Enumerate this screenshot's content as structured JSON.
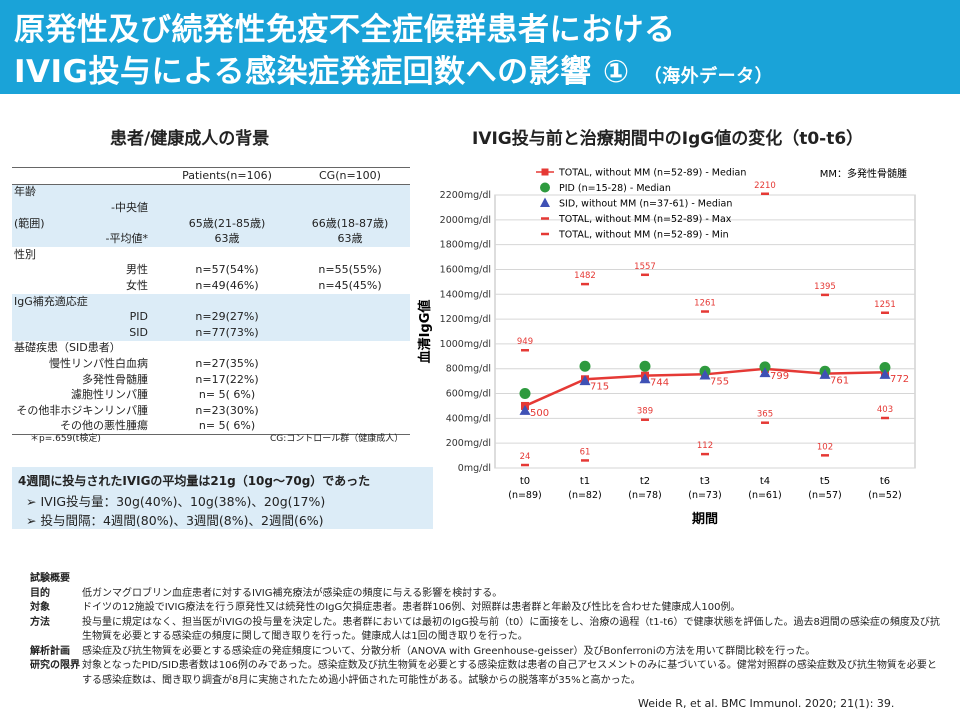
{
  "header": {
    "title_line1": "原発性及び続発性免疫不全症候群患者における",
    "title_line2": "IVIG投与による感染症発症回数への影響 ①",
    "title_tag": "（海外データ）"
  },
  "left_heading": "患者/健康成人の背景",
  "right_heading": "IVIG投与前と治療期間中のIgG値の変化（t0-t6）",
  "background_table": {
    "col_patients": "Patients(n=106)",
    "col_cg": "CG(n=100)",
    "age_label": "年齢",
    "range_label": "(範囲)",
    "median_label": "-中央値",
    "median_patients": "65歳(21-85歳)",
    "median_cg": "66歳(18-87歳)",
    "mean_label": "-平均値*",
    "mean_patients": "63歳",
    "mean_cg": "63歳",
    "sex_label": "性別",
    "male_label": "男性",
    "male_patients": "n=57(54%)",
    "male_cg": "n=55(55%)",
    "female_label": "女性",
    "female_patients": "n=49(46%)",
    "female_cg": "n=45(45%)",
    "igg_label": "IgG補充適応症",
    "pid_label": "PID",
    "pid_patients": "n=29(27%)",
    "sid_label": "SID",
    "sid_patients": "n=77(73%)",
    "disease_label": "基礎疾患（SID患者）",
    "d1_label": "慢性リンパ性白血病",
    "d1_val": "n=27(35%)",
    "d2_label": "多発性骨髄腫",
    "d2_val": "n=17(22%)",
    "d3_label": "濾胞性リンパ腫",
    "d3_val": "n=  5(  6%)",
    "d4_label": "その他非ホジキンリンパ腫",
    "d4_val": "n=23(30%)",
    "d5_label": "その他の悪性腫瘍",
    "d5_val": "n=  5(  6%)",
    "note_p": "＊p=.659(t検定)",
    "note_cg": "CG:コントロール群（健康成人）"
  },
  "dose_box": {
    "line1": "4週間に投与されたIVIGの平均量は21g（10g～70g）であった",
    "line2": "IVIG投与量：30g(40%)、10g(38%)、20g(17%)",
    "line3": "投与間隔：4週間(80%)、3週間(8%)、2週間(6%)",
    "bullet": "➢"
  },
  "summary": {
    "heading": "試験概要",
    "rows": [
      {
        "label": "目的",
        "text": "低ガンマグロブリン血症患者に対するIVIG補充療法が感染症の頻度に与える影響を検討する。"
      },
      {
        "label": "対象",
        "text": "ドイツの12施設でIVIG療法を行う原発性又は続発性のIgG欠損症患者。患者群106例、対照群は患者群と年齢及び性比を合わせた健康成人100例。"
      },
      {
        "label": "方法",
        "text": "投与量に規定はなく、担当医がIVIGの投与量を決定した。患者群においては最初のIgG投与前（t0）に面接をし、治療の過程（t1-t6）で健康状態を評価した。過去8週間の感染症の頻度及び抗生物質を必要とする感染症の頻度に関して聞き取りを行った。健康成人は1回の聞き取りを行った。"
      },
      {
        "label": "解析計画",
        "text": "感染症及び抗生物質を必要とする感染症の発症頻度について、分散分析（ANOVA with Greenhouse-geisser）及びBonferroniの方法を用いて群間比較を行った。"
      },
      {
        "label": "研究の限界",
        "text": "対象となったPID/SID患者数は106例のみであった。感染症数及び抗生物質を必要とする感染症数は患者の自己アセスメントのみに基づいている。健常対照群の感染症数及び抗生物質を必要とする感染症数は、聞き取り調査が8月に実施されたため過小評価された可能性がある。試験からの脱落率が35%と高かった。"
      }
    ]
  },
  "citation": "Weide R, et al. BMC Immunol. 2020; 21(1): 39.",
  "colors": {
    "header": "#1aa3d8",
    "total": "#e53935",
    "pid": "#2e9a3e",
    "sid": "#3f51b5",
    "shade": "#dcecf7"
  },
  "chart_data": {
    "type": "line",
    "title": "IVIG投与前と治療期間中のIgG値の変化（t0-t6）",
    "ylabel": "血清IgG値",
    "xlabel": "期間",
    "note": "MM：多発性骨髄腫",
    "ylim": [
      0,
      2200
    ],
    "yticks": [
      0,
      200,
      400,
      600,
      800,
      1000,
      1200,
      1400,
      1600,
      1800,
      2000,
      2200
    ],
    "ytick_suffix": "mg/dl",
    "categories": [
      "t0",
      "t1",
      "t2",
      "t3",
      "t4",
      "t5",
      "t6"
    ],
    "n_labels": [
      "(n=89)",
      "(n=82)",
      "(n=78)",
      "(n=73)",
      "(n=61)",
      "(n=57)",
      "(n=52)"
    ],
    "grid": true,
    "legend_position": "top",
    "series": [
      {
        "name": "TOTAL, without MM (n=52-89) - Median",
        "values": [
          500,
          715,
          744,
          755,
          799,
          761,
          772
        ],
        "labels": [
          "500",
          "715",
          "744",
          "755",
          "799",
          "761",
          "772"
        ]
      },
      {
        "name": "PID (n=15-28) - Median",
        "values": [
          600,
          820,
          820,
          780,
          815,
          780,
          810
        ]
      },
      {
        "name": "SID, without MM (n=37-61) - Median",
        "values": [
          460,
          700,
          715,
          745,
          765,
          750,
          750
        ]
      },
      {
        "name": "TOTAL, without MM (n=52-89) - Max",
        "values": [
          949,
          1482,
          1557,
          1261,
          2210,
          1395,
          1251
        ],
        "labels": [
          "949",
          "1482",
          "1557",
          "1261",
          "2210",
          "1395",
          "1251"
        ]
      },
      {
        "name": "TOTAL, without MM (n=52-89) - Min",
        "values": [
          24,
          61,
          389,
          112,
          365,
          102,
          403
        ],
        "labels": [
          "24",
          "61",
          "389",
          "112",
          "365",
          "102",
          "403"
        ]
      }
    ]
  }
}
